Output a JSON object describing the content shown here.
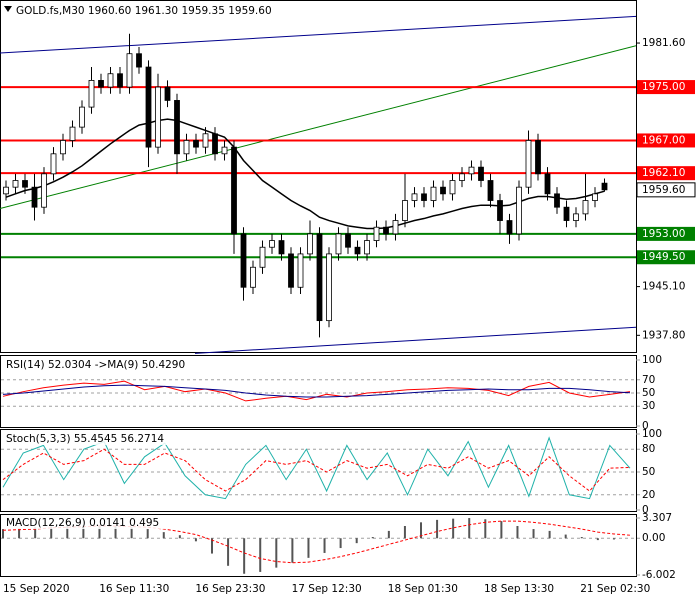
{
  "chart_data": [
    {
      "type": "candlestick",
      "title": "GOLD.fs,M30  1960.60 1961.30 1959.35 1959.60",
      "open": [
        1959,
        1960,
        1961,
        1960,
        1957,
        1962,
        1965,
        1967,
        1969,
        1972,
        1976,
        1975,
        1977,
        1975,
        1980,
        1978,
        1966,
        1975,
        1973,
        1965,
        1967,
        1966,
        1968,
        1965,
        1966,
        1953,
        1945,
        1948,
        1951,
        1952,
        1950,
        1945,
        1950,
        1953,
        1940,
        1950,
        1953,
        1951,
        1950,
        1952,
        1954,
        1953,
        1955,
        1958,
        1959,
        1958,
        1960,
        1959,
        1961,
        1962,
        1963,
        1961,
        1958,
        1955,
        1953,
        1960,
        1967,
        1962,
        1959,
        1957,
        1955,
        1956,
        1958,
        1960.6
      ],
      "high": [
        1961,
        1962,
        1962,
        1962,
        1963,
        1966,
        1968,
        1970,
        1973,
        1978,
        1977,
        1978,
        1978,
        1983,
        1981,
        1979,
        1977,
        1976,
        1974,
        1968,
        1968,
        1969,
        1969,
        1967,
        1967,
        1954,
        1949,
        1952,
        1953,
        1953,
        1951,
        1951,
        1955,
        1954,
        1951,
        1954,
        1954,
        1952,
        1953,
        1955,
        1955,
        1956,
        1962,
        1960,
        1960,
        1961,
        1961,
        1962,
        1963,
        1964,
        1964,
        1962,
        1959,
        1956,
        1961,
        1968.5,
        1968,
        1963,
        1960,
        1958,
        1957,
        1962,
        1960,
        1961.3
      ],
      "low": [
        1958,
        1959,
        1959,
        1955,
        1956,
        1961,
        1964,
        1966,
        1968,
        1971,
        1974,
        1974,
        1974,
        1974,
        1977,
        1963,
        1965,
        1972,
        1962,
        1964,
        1965,
        1965,
        1964,
        1964,
        1950,
        1943,
        1944,
        1947,
        1950,
        1949,
        1944,
        1944,
        1949,
        1937.5,
        1939,
        1949,
        1950,
        1949,
        1949,
        1951,
        1952,
        1952,
        1954,
        1957,
        1957,
        1957,
        1958,
        1958,
        1960,
        1961,
        1960,
        1957,
        1953,
        1951.5,
        1952,
        1959,
        1961,
        1958,
        1956,
        1954,
        1954,
        1955,
        1957,
        1959.35
      ],
      "close": [
        1960,
        1961,
        1960,
        1957,
        1962,
        1965,
        1967,
        1969,
        1972,
        1976,
        1975,
        1977,
        1975,
        1980,
        1978,
        1966,
        1975,
        1973,
        1965,
        1967,
        1966,
        1968,
        1965,
        1966,
        1953,
        1945,
        1948,
        1951,
        1952,
        1950,
        1945,
        1950,
        1953,
        1940,
        1950,
        1953,
        1951,
        1950,
        1952,
        1954,
        1953,
        1955,
        1958,
        1959,
        1958,
        1960,
        1959,
        1961,
        1962,
        1963,
        1961,
        1958,
        1955,
        1953,
        1960,
        1967,
        1962,
        1959,
        1957,
        1955,
        1956,
        1958,
        1959,
        1959.6
      ],
      "bull_color": "#ffffff",
      "bear_color": "#000000",
      "wick_color": "#000000",
      "ma": {
        "color": "#000000",
        "values": [
          1958.5,
          1959,
          1959.5,
          1959.8,
          1960.2,
          1960.8,
          1961.5,
          1962.3,
          1963.2,
          1964.3,
          1965.4,
          1966.5,
          1967.5,
          1968.5,
          1969.3,
          1969.6,
          1970,
          1970.2,
          1970,
          1969.5,
          1969,
          1968.5,
          1968,
          1967.5,
          1966,
          1964,
          1962.5,
          1961,
          1960,
          1959,
          1958,
          1957.2,
          1956.5,
          1955.5,
          1955,
          1954.6,
          1954.2,
          1954,
          1953.8,
          1953.8,
          1953.9,
          1954.2,
          1954.6,
          1955,
          1955.3,
          1955.7,
          1956,
          1956.4,
          1956.8,
          1957.1,
          1957.3,
          1957.3,
          1957.2,
          1957.3,
          1957.8,
          1958.3,
          1958.6,
          1958.6,
          1958.4,
          1958.2,
          1958.3,
          1958.6,
          1959,
          1959.4
        ]
      },
      "trendlines": [
        {
          "color": "#00008b",
          "values": [
            1980.1,
            1985.6
          ]
        },
        {
          "color": "#008000",
          "values": [
            1956.8,
            1981.2
          ]
        },
        {
          "color": "#00008b",
          "values": [
            1935.1,
            1939.0
          ]
        }
      ],
      "levels": [
        {
          "value": 1975,
          "label": "1975.00",
          "color": "#ff0000"
        },
        {
          "value": 1967,
          "label": "1967.00",
          "color": "#ff0000"
        },
        {
          "value": 1962.1,
          "label": "1962.10",
          "color": "#ff0000"
        },
        {
          "value": 1953,
          "label": "1953.00",
          "color": "#008000"
        },
        {
          "value": 1949.5,
          "label": "1949.50",
          "color": "#008000"
        }
      ],
      "last_price": {
        "value": 1959.6,
        "label": "1959.60"
      },
      "ylim": [
        1935.3,
        1987.6
      ],
      "yticks": [
        {
          "value": 1981.6,
          "label": "1981.60"
        },
        {
          "value": 1945.1,
          "label": "1945.10"
        },
        {
          "value": 1937.8,
          "label": "1937.80"
        }
      ],
      "time_labels": [
        "15 Sep 2020",
        "16 Sep 11:30",
        "16 Sep 23:30",
        "17 Sep 12:30",
        "18 Sep 01:30",
        "18 Sep 13:30",
        "21 Sep 02:30"
      ]
    },
    {
      "type": "line",
      "title": "RSI(14) 52.0304 ->MA(9) 50.4290",
      "ylim": [
        0,
        100
      ],
      "yticks": [
        100,
        70,
        50,
        30,
        0
      ],
      "series": [
        {
          "color": "#ff0000",
          "dashed": false,
          "values": [
            45,
            52,
            58,
            62,
            65,
            63,
            68,
            55,
            60,
            52,
            56,
            50,
            38,
            42,
            45,
            40,
            48,
            44,
            50,
            52,
            55,
            56,
            58,
            57,
            54,
            46,
            60,
            66,
            50,
            44,
            48,
            52
          ]
        },
        {
          "color": "#00008b",
          "dashed": false,
          "values": [
            48,
            50,
            53,
            56,
            59,
            61,
            62,
            61,
            60,
            58,
            56,
            54,
            50,
            47,
            45,
            44,
            44,
            45,
            46,
            48,
            50,
            52,
            54,
            55,
            56,
            55,
            55,
            57,
            57,
            55,
            52,
            50.4
          ]
        }
      ]
    },
    {
      "type": "line",
      "title": "Stoch(5,3,3) 55.4545 56.2714",
      "ylim": [
        0,
        100
      ],
      "yticks": [
        100,
        80,
        50,
        20,
        0
      ],
      "series": [
        {
          "color": "#20b2aa",
          "dashed": false,
          "values": [
            30,
            75,
            85,
            40,
            80,
            90,
            35,
            70,
            88,
            45,
            20,
            15,
            60,
            85,
            40,
            80,
            25,
            85,
            40,
            75,
            20,
            80,
            45,
            90,
            30,
            85,
            18,
            95,
            20,
            15,
            85,
            55
          ]
        },
        {
          "color": "#ff0000",
          "dashed": true,
          "values": [
            40,
            60,
            75,
            60,
            65,
            80,
            60,
            60,
            75,
            65,
            40,
            25,
            40,
            65,
            60,
            65,
            50,
            65,
            55,
            60,
            45,
            60,
            55,
            70,
            55,
            65,
            45,
            70,
            45,
            25,
            55,
            56
          ]
        }
      ]
    },
    {
      "type": "macd",
      "title": "MACD(12,26,9) 0.0141 0.495",
      "ylim": [
        -6.002,
        3.307
      ],
      "yticks": [
        3.307,
        {
          "value": 0,
          "label": "0.00"
        },
        -6.002
      ],
      "series": [
        {
          "color": "#555555",
          "style": "histogram",
          "values": [
            1.5,
            1.6,
            1.8,
            1.9,
            2.0,
            2.1,
            2.2,
            2.0,
            1.8,
            1.5,
            1.0,
            0.5,
            -0.5,
            -2.5,
            -4.5,
            -5.8,
            -5.5,
            -4.8,
            -4.0,
            -3.2,
            -2.4,
            -1.6,
            -0.8,
            0.2,
            1.2,
            2.0,
            2.6,
            3.0,
            3.2,
            3.3,
            3.1,
            2.8,
            2.0,
            1.5,
            1.2,
            0.6,
            0.2,
            -0.3,
            -0.2,
            0.0
          ]
        },
        {
          "color": "#ff0000",
          "style": "dashed",
          "values": [
            1.3,
            1.4,
            1.5,
            1.7,
            1.8,
            1.9,
            2.0,
            2.0,
            1.9,
            1.8,
            1.5,
            1.1,
            0.6,
            -0.3,
            -1.3,
            -2.4,
            -3.3,
            -3.8,
            -4.0,
            -3.9,
            -3.5,
            -3.0,
            -2.4,
            -1.7,
            -1.0,
            -0.3,
            0.4,
            1.1,
            1.7,
            2.2,
            2.6,
            2.8,
            2.8,
            2.6,
            2.3,
            1.9,
            1.5,
            1.0,
            0.7,
            0.5
          ]
        }
      ]
    }
  ]
}
